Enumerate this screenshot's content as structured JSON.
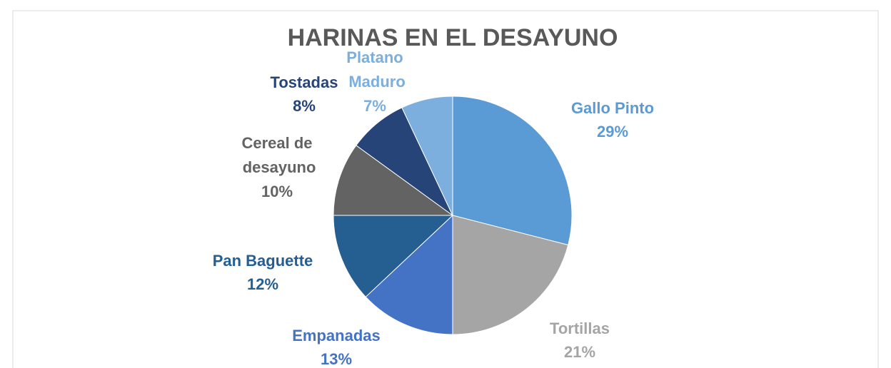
{
  "chart_data": {
    "type": "pie",
    "title": "HARINAS EN EL DESAYUNO",
    "categories": [
      "Gallo Pinto",
      "Tortillas",
      "Empanadas",
      "Pan Baguette",
      "Cereal de desayuno",
      "Tostadas",
      "Platano Maduro"
    ],
    "values": [
      29,
      21,
      13,
      12,
      10,
      8,
      7
    ],
    "value_labels": [
      "29%",
      "21%",
      "13%",
      "12%",
      "10%",
      "8%",
      "7%"
    ],
    "colors": [
      "#5b9bd5",
      "#a5a5a5",
      "#4472c4",
      "#255e91",
      "#636363",
      "#264478",
      "#7cafdd"
    ]
  }
}
